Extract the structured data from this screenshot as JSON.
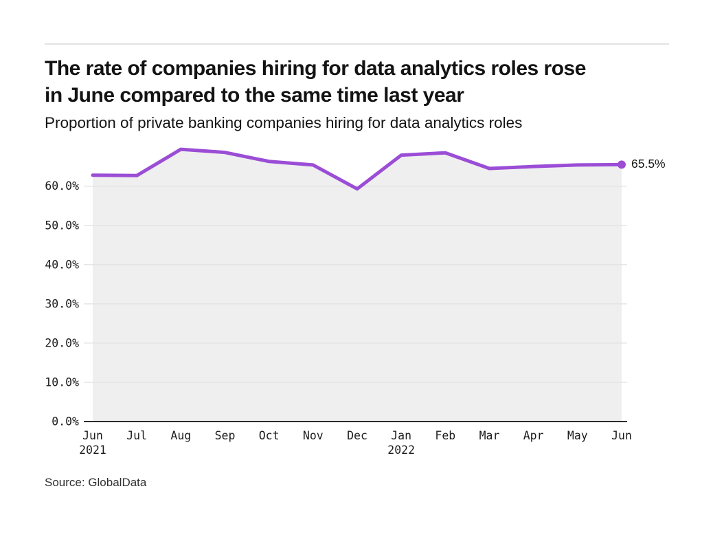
{
  "page": {
    "background": "#FFFFFF"
  },
  "header": {
    "title_lines": [
      "The rate of companies hiring for data analytics roles rose",
      "in June compared to the same time last year"
    ],
    "subtitle": "Proportion of private banking companies hiring for data analytics roles"
  },
  "footer": {
    "source": "Source: GlobalData"
  },
  "chart_data": {
    "type": "line",
    "area_fill": true,
    "title": "The rate of companies hiring for data analytics roles rose in June compared to the same time last year",
    "subtitle": "Proportion of private banking companies hiring for data analytics roles",
    "categories": [
      "Jun",
      "Jul",
      "Aug",
      "Sep",
      "Oct",
      "Nov",
      "Dec",
      "Jan",
      "Feb",
      "Mar",
      "Apr",
      "May",
      "Jun"
    ],
    "year_labels": [
      {
        "index": 0,
        "label": "2021"
      },
      {
        "index": 7,
        "label": "2022"
      }
    ],
    "series": [
      {
        "name": "Proportion of private banking companies hiring for data analytics roles",
        "values": [
          62.8,
          62.7,
          69.4,
          68.6,
          66.3,
          65.4,
          59.3,
          67.9,
          68.5,
          64.5,
          65.0,
          65.4,
          65.5
        ]
      }
    ],
    "end_label": "65.5%",
    "y_ticks": [
      {
        "value": 0,
        "label": "0.0%"
      },
      {
        "value": 10,
        "label": "10.0%"
      },
      {
        "value": 20,
        "label": "20.0%"
      },
      {
        "value": 30,
        "label": "30.0%"
      },
      {
        "value": 40,
        "label": "40.0%"
      },
      {
        "value": 50,
        "label": "50.0%"
      },
      {
        "value": 60,
        "label": "60.0%"
      }
    ],
    "ylim": [
      0,
      70
    ],
    "grid": true,
    "legend": "none",
    "colors": {
      "line": "#9B4DD6",
      "marker": "#9B4DD6",
      "area_fill": "#EFEFEF",
      "gridline": "#E2E2E2",
      "axis": "#2B2B2B",
      "text": "#1C1C1C",
      "divider": "#E4E4E4"
    }
  }
}
